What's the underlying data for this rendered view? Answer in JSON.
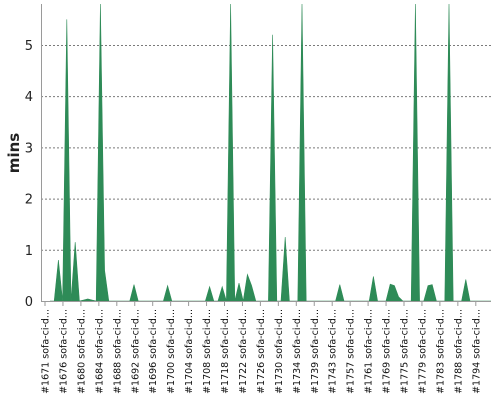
{
  "chart_data": {
    "type": "area",
    "title": "",
    "xlabel": "",
    "ylabel": "mins",
    "ylim": [
      0,
      5.8
    ],
    "yticks": [
      0,
      1,
      2,
      3,
      4,
      5
    ],
    "grid": true,
    "legend": "none",
    "colors": {
      "fill": "#2e8b57",
      "grid": "#7a7a7a",
      "axis": "#9a9a9a"
    },
    "x_ticks": [
      "#1671 sofa-ci-d...",
      "#1676 sofa-ci-d...",
      "#1680 sofa-ci-d...",
      "#1684 sofa-ci-d...",
      "#1688 sofa-ci-d...",
      "#1692 sofa-ci-d...",
      "#1696 sofa-ci-d...",
      "#1700 sofa-ci-d...",
      "#1704 sofa-ci-d...",
      "#1708 sofa-ci-d...",
      "#1718 sofa-ci-d...",
      "#1722 sofa-ci-d...",
      "#1726 sofa-ci-d...",
      "#1730 sofa-ci-d...",
      "#1734 sofa-ci-d...",
      "#1739 sofa-ci-d...",
      "#1743 sofa-ci-d...",
      "#1757 sofa-ci-d...",
      "#1761 sofa-ci-d...",
      "#1769 sofa-ci-d...",
      "#1775 sofa-ci-d...",
      "#1779 sofa-ci-d...",
      "#1783 sofa-ci-d...",
      "#1788 sofa-ci-d...",
      "#1794 sofa-ci-d..."
    ],
    "values": [
      0,
      0,
      0.8,
      0,
      5.5,
      0,
      1.15,
      0,
      0.02,
      0.04,
      0.02,
      0,
      6,
      0.6,
      0,
      0,
      0,
      0,
      0,
      0,
      0.32,
      0,
      0,
      0,
      0,
      0,
      0,
      0,
      0.3,
      0,
      0,
      0,
      0,
      0,
      0,
      0,
      0,
      0,
      0.28,
      0,
      0,
      0.28,
      0,
      6,
      0,
      0.35,
      0,
      0.52,
      0.3,
      0,
      0,
      0,
      0,
      5.2,
      0,
      0,
      1.25,
      0,
      0,
      0,
      6,
      0,
      0,
      0,
      0,
      0,
      0,
      0,
      0,
      0.32,
      0,
      0,
      0,
      0,
      0,
      0,
      0,
      0.48,
      0,
      0,
      0,
      0.33,
      0.3,
      0.08,
      0,
      0,
      0,
      6,
      0,
      0,
      0.3,
      0.32,
      0,
      0,
      0,
      6,
      0,
      0,
      0,
      0.42,
      0,
      0,
      0,
      0,
      0,
      0
    ]
  }
}
